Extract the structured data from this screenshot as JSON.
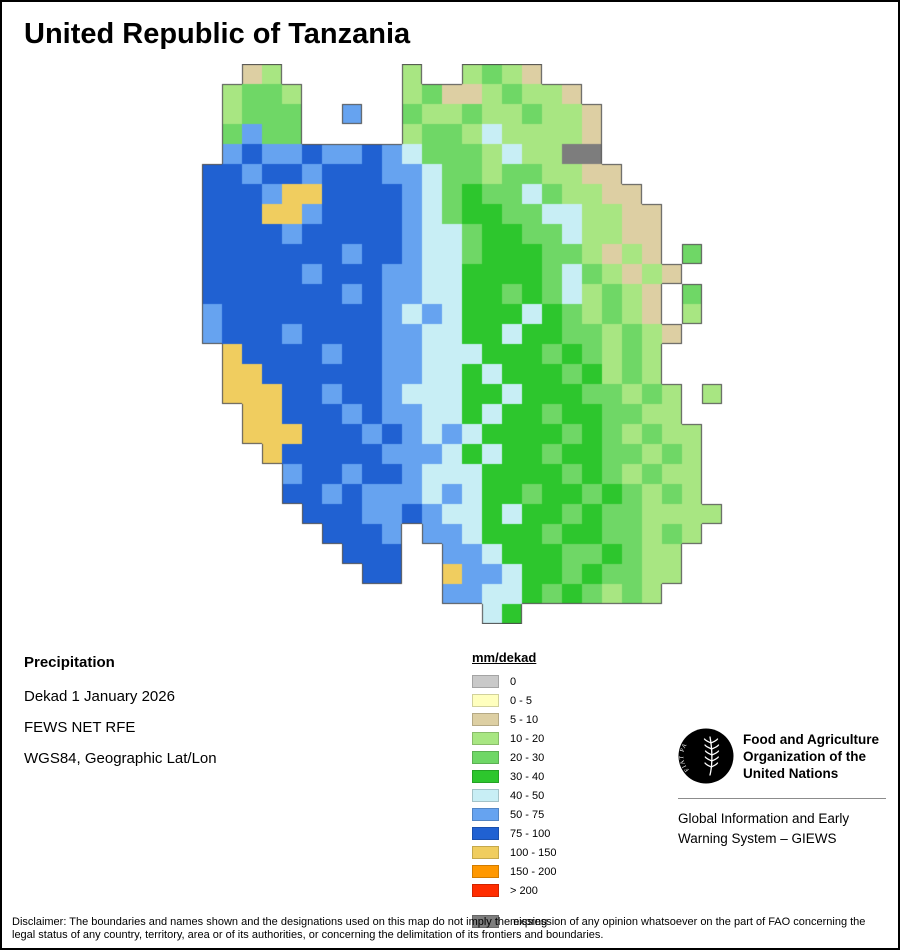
{
  "title": "United Republic of Tanzania",
  "info": {
    "heading": "Precipitation",
    "lines": [
      "Dekad 1 January 2026",
      "FEWS NET RFE",
      "WGS84, Geographic Lat/Lon"
    ]
  },
  "legend": {
    "title": "mm/dekad",
    "items": [
      {
        "label": "0",
        "key": "a"
      },
      {
        "label": "0 - 5",
        "key": "b"
      },
      {
        "label": "5 - 10",
        "key": "c"
      },
      {
        "label": "10 - 20",
        "key": "d"
      },
      {
        "label": "20 - 30",
        "key": "e"
      },
      {
        "label": "30 - 40",
        "key": "f"
      },
      {
        "label": "40 - 50",
        "key": "g"
      },
      {
        "label": "50 - 75",
        "key": "h"
      },
      {
        "label": "75 - 100",
        "key": "i"
      },
      {
        "label": "100 - 150",
        "key": "j"
      },
      {
        "label": "150 - 200",
        "key": "k"
      },
      {
        "label": "> 200",
        "key": "l"
      }
    ],
    "missing": {
      "label": "missing",
      "key": "m"
    }
  },
  "map": {
    "cell_size": 20,
    "cols": 28,
    "rows": 28,
    "outline_color": "#4a4a4a",
    "palette": {
      "a": "#c9c9c9",
      "b": "#ffffbe",
      "c": "#ddcfa3",
      "d": "#a8e682",
      "e": "#6fd766",
      "f": "#2dc62d",
      "g": "#c8eef5",
      "h": "#66a3f0",
      "i": "#2061d2",
      "j": "#f0cd5f",
      "k": "#ff9800",
      "l": "#ff2d00",
      "m": "#7d7d7d"
    },
    "grid": [
      "...cd......d..dedc..........",
      "..deed.....deccdeddc........",
      "..deee..h..eddeddeddc.......",
      "..ehee.....deedgddddc.......",
      "..hihhihhihgeeedgddmm.......",
      ".iihiihiiihhgeedeeddcc......",
      ".iiihjjiiiihgefeegeddcc.....",
      ".iiijjhiiiihgeffeeggddcc....",
      ".iiiihiiiiihggeffeegddcc....",
      ".iiiiiiihiihggefffeedcdc.e..",
      ".iiiiihiiihhggffffegedcdc...",
      ".iiiiiiihihhggffefegdedc.e..",
      ".hiiiiiiiihghgfffgfededc.d..",
      ".hiiihiiiihhggffgffeededc...",
      "..jiiiihiihhgggfffefeded....",
      "..jjiiiiiihhggfgfffefded....",
      "..jjjiihiihgggffgfffeeded.d.",
      "...jjiiihihhggfgffeffeedd...",
      "...jjjiiihihghgffffefededd..",
      "....jiiiiihhhgfgffeffeeded..",
      ".....hiihiihgggffffefededd..",
      ".....iihihhhghgffeffefeded..",
      "......iiihhihggfgffefeedddd.",
      ".......iiih.hhgfffeffeeded..",
      "........iii..hhgfffeefedd...",
      ".........ii..jhhgffefeedd...",
      ".............hhggfefeded....",
      "...............gf..........."
    ]
  },
  "footer": {
    "fao_motto": "FIAT PANIS",
    "org_lines": [
      "Food and Agriculture",
      "Organization of the",
      "United Nations"
    ],
    "giews_lines": [
      "Global Information and Early",
      "Warning System – GIEWS"
    ]
  },
  "disclaimer": "Disclaimer: The boundaries and names shown and the designations used on this map do not imply the expression of any opinion whatsoever on the part of FAO concerning the legal status of any country, territory, area or of its authorities, or concerning the delimitation of its frontiers and boundaries."
}
